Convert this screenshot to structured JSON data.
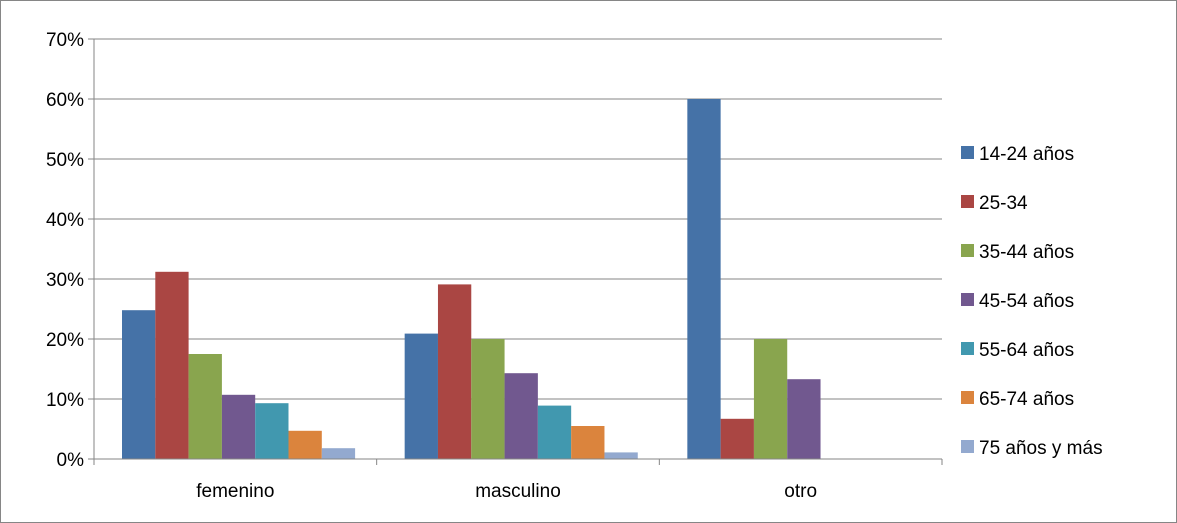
{
  "chart_data": {
    "type": "bar",
    "title": "",
    "xlabel": "",
    "ylabel": "",
    "categories": [
      "femenino",
      "masculino",
      "otro"
    ],
    "ylim": [
      0,
      0.7
    ],
    "yticks": [
      0,
      0.1,
      0.2,
      0.3,
      0.4,
      0.5,
      0.6,
      0.7
    ],
    "ytick_labels": [
      "0%",
      "10%",
      "20%",
      "30%",
      "40%",
      "50%",
      "60%",
      "70%"
    ],
    "grid": true,
    "legend_position": "right",
    "series": [
      {
        "name": "14-24 años",
        "color": "#4572A7",
        "values": [
          0.248,
          0.209,
          0.6
        ]
      },
      {
        "name": "25-34",
        "color": "#AA4643",
        "values": [
          0.312,
          0.291,
          0.067
        ]
      },
      {
        "name": "35-44 años",
        "color": "#89A54E",
        "values": [
          0.175,
          0.2,
          0.2
        ]
      },
      {
        "name": "45-54 años",
        "color": "#71588F",
        "values": [
          0.107,
          0.143,
          0.133
        ]
      },
      {
        "name": "55-64 años",
        "color": "#4198AF",
        "values": [
          0.093,
          0.089,
          0.0
        ]
      },
      {
        "name": "65-74 años",
        "color": "#DB843D",
        "values": [
          0.047,
          0.055,
          0.0
        ]
      },
      {
        "name": "75 años y más",
        "color": "#93A9CF",
        "values": [
          0.018,
          0.011,
          0.0
        ]
      }
    ]
  }
}
